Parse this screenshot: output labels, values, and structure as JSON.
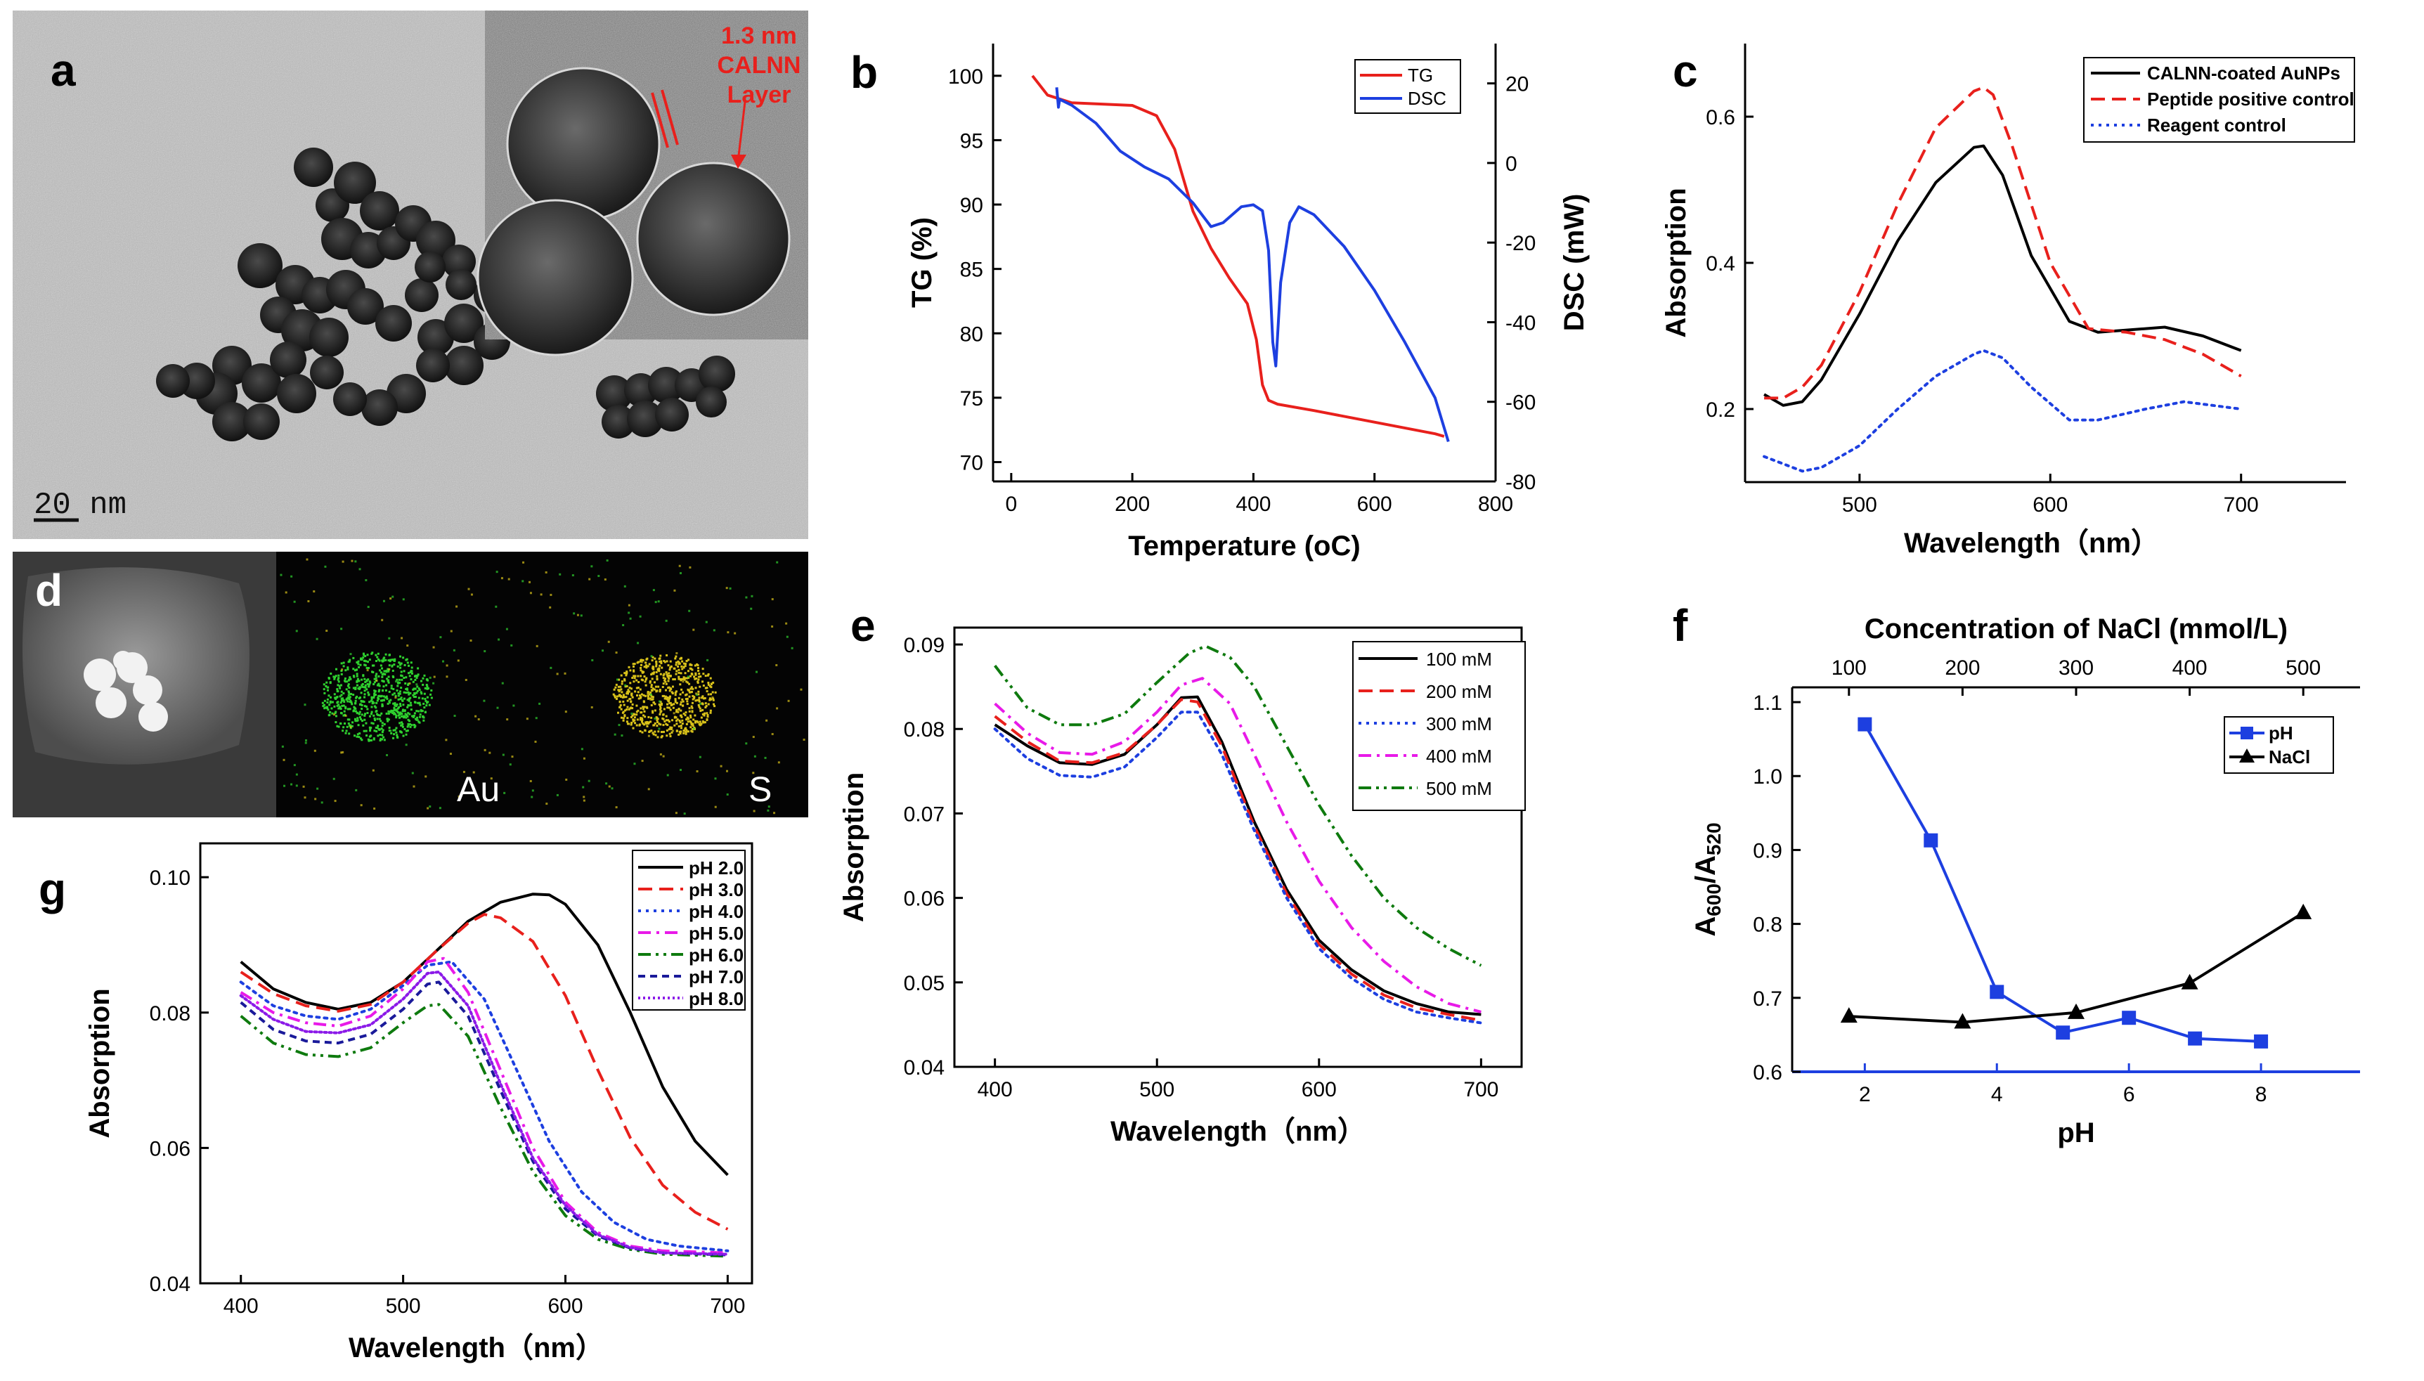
{
  "figure": {
    "panels": {
      "a": {
        "letter": "a",
        "scale_bar": "20 nm",
        "annotation": [
          "1.3 nm",
          "CALNN",
          "Layer"
        ]
      },
      "d": {
        "letter": "d",
        "map_labels": [
          "Au",
          "S"
        ]
      }
    }
  },
  "chart_data": [
    {
      "id": "b",
      "letter": "b",
      "type": "line",
      "xlabel": "Temperature (oC)",
      "ylabel_left": "TG (%)",
      "ylabel_right": "DSC (mW)",
      "xlim": [
        -30,
        800
      ],
      "ylim_left": [
        68.5,
        102.5
      ],
      "ylim_right": [
        -80,
        30
      ],
      "xticks": [
        0,
        200,
        400,
        600,
        800
      ],
      "yticks_left": [
        70,
        75,
        80,
        85,
        90,
        95,
        100
      ],
      "yticks_right": [
        -80,
        -60,
        -40,
        -20,
        0,
        20
      ],
      "legend_position": "top-right",
      "series": [
        {
          "name": "TG",
          "color": "#e8201c",
          "axis": "left",
          "style": "solid",
          "x": [
            35,
            60,
            100,
            150,
            200,
            240,
            270,
            300,
            330,
            360,
            390,
            405,
            415,
            425,
            440,
            500,
            600,
            700,
            715
          ],
          "y": [
            100,
            98.5,
            97.9,
            97.8,
            97.7,
            96.9,
            94.3,
            89.5,
            86.6,
            84.3,
            82.3,
            79.5,
            76.0,
            74.8,
            74.5,
            74.0,
            73.1,
            72.2,
            72.0
          ]
        },
        {
          "name": "DSC",
          "color": "#1d3fe0",
          "axis": "right",
          "style": "solid",
          "x": [
            75,
            78,
            80,
            100,
            140,
            180,
            220,
            260,
            300,
            330,
            350,
            380,
            400,
            415,
            425,
            432,
            437,
            445,
            460,
            475,
            500,
            550,
            600,
            650,
            700,
            722
          ],
          "y": [
            19,
            14,
            16,
            14.5,
            10,
            3,
            -1,
            -4,
            -10,
            -16,
            -15,
            -11,
            -10.5,
            -12,
            -22,
            -45,
            -51,
            -30,
            -15,
            -11,
            -13,
            -21,
            -32,
            -45,
            -59,
            -70
          ]
        }
      ]
    },
    {
      "id": "c",
      "letter": "c",
      "type": "line",
      "xlabel": "Wavelength（nm）",
      "ylabel": "Absorption",
      "xlim": [
        440,
        755
      ],
      "ylim": [
        0.1,
        0.7
      ],
      "xticks": [
        500,
        600,
        700
      ],
      "yticks": [
        0.2,
        0.4,
        0.6
      ],
      "legend_position": "top-right",
      "series": [
        {
          "name": "CALNN-coated AuNPs",
          "color": "#000000",
          "style": "solid",
          "x": [
            450,
            460,
            470,
            480,
            500,
            520,
            540,
            560,
            565,
            575,
            590,
            610,
            625,
            650,
            660,
            680,
            700
          ],
          "y": [
            0.22,
            0.205,
            0.21,
            0.24,
            0.33,
            0.43,
            0.51,
            0.558,
            0.56,
            0.52,
            0.41,
            0.32,
            0.305,
            0.31,
            0.312,
            0.3,
            0.28
          ]
        },
        {
          "name": "Peptide positive control",
          "color": "#e8201c",
          "style": "dashed",
          "x": [
            450,
            460,
            470,
            480,
            500,
            520,
            540,
            560,
            565,
            570,
            580,
            600,
            620,
            640,
            660,
            680,
            700
          ],
          "y": [
            0.215,
            0.215,
            0.23,
            0.26,
            0.36,
            0.48,
            0.585,
            0.635,
            0.64,
            0.63,
            0.56,
            0.4,
            0.31,
            0.305,
            0.295,
            0.275,
            0.245
          ]
        },
        {
          "name": "Reagent control",
          "color": "#1d3fe0",
          "style": "dotted",
          "x": [
            450,
            470,
            480,
            500,
            520,
            540,
            560,
            565,
            575,
            590,
            610,
            625,
            650,
            670,
            700
          ],
          "y": [
            0.135,
            0.115,
            0.12,
            0.15,
            0.2,
            0.245,
            0.275,
            0.28,
            0.27,
            0.23,
            0.185,
            0.185,
            0.2,
            0.21,
            0.2
          ]
        }
      ]
    },
    {
      "id": "e",
      "letter": "e",
      "type": "line",
      "xlabel": "Wavelength（nm）",
      "ylabel": "Absorption",
      "xlim": [
        375,
        725
      ],
      "ylim": [
        0.04,
        0.092
      ],
      "xticks": [
        400,
        500,
        600,
        700
      ],
      "yticks": [
        0.04,
        0.05,
        0.06,
        0.07,
        0.08,
        0.09
      ],
      "legend_position": "top-right",
      "series": [
        {
          "name": "100 mM",
          "color": "#000000",
          "style": "solid",
          "x": [
            400,
            420,
            440,
            460,
            480,
            500,
            515,
            525,
            540,
            560,
            580,
            600,
            620,
            640,
            660,
            680,
            700
          ],
          "y": [
            0.0805,
            0.078,
            0.076,
            0.0758,
            0.077,
            0.0805,
            0.0837,
            0.0838,
            0.0785,
            0.069,
            0.061,
            0.055,
            0.0515,
            0.049,
            0.0475,
            0.0465,
            0.0462
          ]
        },
        {
          "name": "200 mM",
          "color": "#e8201c",
          "style": "dashed",
          "x": [
            400,
            420,
            440,
            460,
            480,
            500,
            515,
            525,
            540,
            560,
            580,
            600,
            620,
            640,
            660,
            680,
            700
          ],
          "y": [
            0.0815,
            0.0785,
            0.0762,
            0.076,
            0.0772,
            0.0805,
            0.0835,
            0.0832,
            0.078,
            0.0685,
            0.0605,
            0.0545,
            0.051,
            0.0485,
            0.047,
            0.0462,
            0.0455
          ]
        },
        {
          "name": "300 mM",
          "color": "#1d3fe0",
          "style": "dotted",
          "x": [
            400,
            420,
            440,
            460,
            480,
            500,
            515,
            525,
            540,
            560,
            580,
            600,
            620,
            640,
            660,
            680,
            700
          ],
          "y": [
            0.08,
            0.0765,
            0.0745,
            0.0743,
            0.0755,
            0.079,
            0.082,
            0.082,
            0.077,
            0.068,
            0.06,
            0.054,
            0.0505,
            0.048,
            0.0465,
            0.0458,
            0.0452
          ]
        },
        {
          "name": "400 mM",
          "color": "#e81ae8",
          "style": "dashdot",
          "x": [
            400,
            420,
            440,
            460,
            480,
            500,
            515,
            528,
            545,
            560,
            580,
            600,
            620,
            640,
            660,
            680,
            700
          ],
          "y": [
            0.083,
            0.0795,
            0.0772,
            0.077,
            0.0785,
            0.082,
            0.0852,
            0.086,
            0.083,
            0.077,
            0.069,
            0.062,
            0.0565,
            0.0525,
            0.0495,
            0.0475,
            0.0465
          ]
        },
        {
          "name": "500 mM",
          "color": "#0e7a0e",
          "style": "dashdotdot",
          "x": [
            400,
            420,
            440,
            460,
            480,
            500,
            520,
            530,
            545,
            560,
            580,
            600,
            620,
            640,
            660,
            680,
            700
          ],
          "y": [
            0.0875,
            0.0825,
            0.0805,
            0.0805,
            0.0818,
            0.0855,
            0.089,
            0.0898,
            0.0885,
            0.085,
            0.078,
            0.071,
            0.065,
            0.06,
            0.0565,
            0.054,
            0.052
          ]
        }
      ]
    },
    {
      "id": "f",
      "letter": "f",
      "type": "line",
      "xlabel": "pH",
      "x2label": "Concentration of NaCl (mmol/L)",
      "ylabel": "A600/A520",
      "xlim": [
        0.9,
        9.5
      ],
      "x2lim": [
        50,
        550
      ],
      "ylim": [
        0.6,
        1.12
      ],
      "xticks": [
        2,
        4,
        6,
        8
      ],
      "x2ticks": [
        100,
        200,
        300,
        400,
        500
      ],
      "yticks": [
        0.6,
        0.7,
        0.8,
        0.9,
        1.0,
        1.1
      ],
      "legend_position": "top-right",
      "series": [
        {
          "name": "pH",
          "color": "#1d3fe0",
          "marker": "square",
          "axis": "bottom",
          "x": [
            2,
            3,
            4,
            5,
            6,
            7,
            8
          ],
          "y": [
            1.07,
            0.913,
            0.708,
            0.653,
            0.673,
            0.645,
            0.641
          ]
        },
        {
          "name": "NaCl",
          "color": "#000000",
          "marker": "triangle",
          "axis": "top",
          "x": [
            100,
            200,
            300,
            400,
            500
          ],
          "y": [
            0.675,
            0.667,
            0.68,
            0.72,
            0.815
          ]
        }
      ]
    },
    {
      "id": "g",
      "letter": "g",
      "type": "line",
      "xlabel": "Wavelength（nm）",
      "ylabel": "Absorption",
      "xlim": [
        375,
        715
      ],
      "ylim": [
        0.04,
        0.105
      ],
      "xticks": [
        400,
        500,
        600,
        700
      ],
      "yticks": [
        0.04,
        0.06,
        0.08,
        0.1
      ],
      "legend_position": "top-right",
      "series": [
        {
          "name": "pH 2.0",
          "color": "#000000",
          "style": "solid",
          "x": [
            400,
            420,
            440,
            460,
            480,
            500,
            520,
            540,
            560,
            580,
            590,
            600,
            620,
            640,
            660,
            680,
            700
          ],
          "y": [
            0.0875,
            0.0835,
            0.0815,
            0.0805,
            0.0815,
            0.0845,
            0.089,
            0.0935,
            0.0963,
            0.0975,
            0.0974,
            0.096,
            0.09,
            0.08,
            0.069,
            0.061,
            0.056
          ]
        },
        {
          "name": "pH 3.0",
          "color": "#e8201c",
          "style": "dashed",
          "x": [
            400,
            420,
            440,
            460,
            480,
            500,
            520,
            540,
            550,
            560,
            580,
            600,
            620,
            640,
            660,
            680,
            700
          ],
          "y": [
            0.086,
            0.0828,
            0.081,
            0.0802,
            0.0812,
            0.0845,
            0.089,
            0.0932,
            0.0945,
            0.094,
            0.0905,
            0.0825,
            0.0715,
            0.0615,
            0.0545,
            0.0505,
            0.048
          ]
        },
        {
          "name": "pH 4.0",
          "color": "#1d3fe0",
          "style": "dotted",
          "x": [
            400,
            420,
            440,
            460,
            480,
            500,
            515,
            530,
            550,
            570,
            590,
            610,
            630,
            650,
            670,
            700
          ],
          "y": [
            0.0845,
            0.081,
            0.0795,
            0.079,
            0.0805,
            0.084,
            0.087,
            0.0875,
            0.082,
            0.0715,
            0.061,
            0.0535,
            0.049,
            0.0465,
            0.0455,
            0.0448
          ]
        },
        {
          "name": "pH 5.0",
          "color": "#e81ae8",
          "style": "dashdot",
          "x": [
            400,
            420,
            440,
            460,
            480,
            500,
            515,
            525,
            540,
            560,
            580,
            600,
            620,
            640,
            660,
            700
          ],
          "y": [
            0.083,
            0.08,
            0.0785,
            0.078,
            0.0795,
            0.0835,
            0.0875,
            0.088,
            0.083,
            0.0715,
            0.06,
            0.052,
            0.0475,
            0.0455,
            0.0448,
            0.0445
          ]
        },
        {
          "name": "pH 6.0",
          "color": "#0e7a0e",
          "style": "dashdotdot",
          "x": [
            400,
            420,
            440,
            460,
            480,
            500,
            515,
            522,
            540,
            560,
            580,
            600,
            620,
            640,
            660,
            700
          ],
          "y": [
            0.0795,
            0.0755,
            0.0738,
            0.0735,
            0.0748,
            0.0785,
            0.081,
            0.0812,
            0.0765,
            0.066,
            0.0565,
            0.05,
            0.0465,
            0.045,
            0.0443,
            0.044
          ]
        },
        {
          "name": "pH 7.0",
          "color": "#1a1a9a",
          "style": "shortdash",
          "x": [
            400,
            420,
            440,
            460,
            480,
            500,
            515,
            522,
            540,
            560,
            580,
            600,
            620,
            640,
            660,
            700
          ],
          "y": [
            0.0815,
            0.0775,
            0.0758,
            0.0755,
            0.0768,
            0.0805,
            0.0842,
            0.0845,
            0.0795,
            0.0685,
            0.058,
            0.051,
            0.047,
            0.0452,
            0.0445,
            0.0442
          ]
        },
        {
          "name": "pH 8.0",
          "color": "#8b1ae8",
          "style": "densedot",
          "x": [
            400,
            420,
            440,
            460,
            480,
            500,
            515,
            522,
            540,
            560,
            580,
            600,
            620,
            640,
            660,
            700
          ],
          "y": [
            0.0825,
            0.079,
            0.0772,
            0.077,
            0.0782,
            0.082,
            0.0858,
            0.086,
            0.081,
            0.0695,
            0.0585,
            0.0515,
            0.0472,
            0.0453,
            0.0445,
            0.0443
          ]
        }
      ]
    }
  ]
}
